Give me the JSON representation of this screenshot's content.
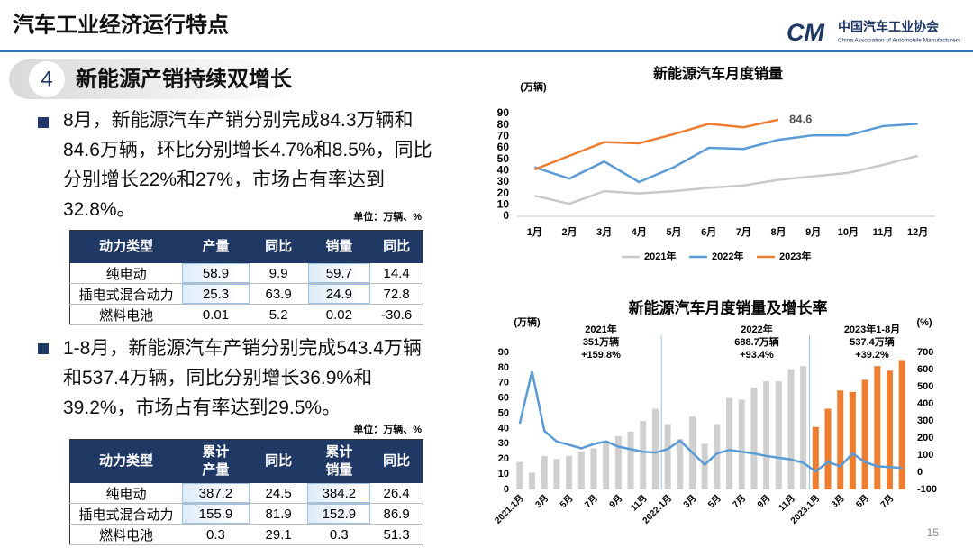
{
  "header": {
    "title": "汽车工业经济运行特点",
    "logo_cn": "中国汽车工业协会",
    "logo_en": "China Association of Automobile Manufacturers"
  },
  "section": {
    "number": "4",
    "title": "新能源产销持续双增长"
  },
  "blocks": [
    {
      "text": "8月，新能源汽车产销分别完成84.3万辆和84.6万辆，环比分别增长4.7%和8.5%，同比分别增长22%和27%，市场占有率达到32.8%。",
      "unit": "单位：万辆、%",
      "table": {
        "header": [
          "动力类型",
          "产量",
          "同比",
          "销量",
          "同比"
        ],
        "rows": [
          [
            "纯电动",
            "58.9",
            "9.9",
            "59.7",
            "14.4"
          ],
          [
            "插电式混合动力",
            "25.3",
            "63.9",
            "24.9",
            "72.8"
          ],
          [
            "燃料电池",
            "0.01",
            "5.2",
            "0.02",
            "-30.6"
          ]
        ]
      }
    },
    {
      "text": "1-8月，新能源汽车产销分别完成543.4万辆和537.4万辆，同比分别增长36.9%和39.2%，市场占有率达到29.5%。",
      "unit": "单位：万辆、%",
      "table": {
        "header": [
          "动力类型",
          "累计\n产量",
          "同比",
          "累计\n销量",
          "同比"
        ],
        "rows": [
          [
            "纯电动",
            "387.2",
            "24.5",
            "384.2",
            "26.4"
          ],
          [
            "插电式混合动力",
            "155.9",
            "81.9",
            "152.9",
            "86.9"
          ],
          [
            "燃料电池",
            "0.3",
            "29.1",
            "0.3",
            "51.3"
          ]
        ]
      }
    }
  ],
  "chart_data": [
    {
      "type": "line",
      "title": "新能源汽车月度销量",
      "y_label": "(万辆)",
      "categories": [
        "1月",
        "2月",
        "3月",
        "4月",
        "5月",
        "6月",
        "7月",
        "8月",
        "9月",
        "10月",
        "11月",
        "12月"
      ],
      "series": [
        {
          "name": "2021年",
          "color": "#c9c9c9",
          "values": [
            18,
            11,
            22,
            20,
            22,
            25,
            27,
            32,
            35,
            38,
            45,
            53
          ]
        },
        {
          "name": "2022年",
          "color": "#5b9bd5",
          "values": [
            43,
            33,
            48,
            30,
            43,
            60,
            59,
            67,
            71,
            71,
            79,
            81
          ]
        },
        {
          "name": "2023年",
          "color": "#ed7d31",
          "values": [
            41,
            53,
            65,
            64,
            72,
            81,
            78,
            84.6,
            null,
            null,
            null,
            null
          ]
        }
      ],
      "ylim": [
        0,
        90
      ],
      "yticks": [
        0,
        10,
        20,
        30,
        40,
        50,
        60,
        70,
        80,
        90
      ],
      "grid": false,
      "legend": "bottom"
    },
    {
      "type": "bar_line",
      "title": "新能源汽车月度销量及增长率",
      "y_label": "(万辆)",
      "y2_label": "(%)",
      "categories": [
        "2021.1月",
        null,
        "3月",
        null,
        "5月",
        null,
        "7月",
        null,
        "9月",
        null,
        "11月",
        null,
        "2022.1月",
        null,
        "3月",
        null,
        "5月",
        null,
        "7月",
        null,
        "9月",
        null,
        "11月",
        null,
        "2023.1月",
        null,
        "3月",
        null,
        "5月",
        null,
        "7月",
        null
      ],
      "series": [
        {
          "type": "bar",
          "values": [
            18,
            11,
            22,
            20,
            22,
            25,
            27,
            32,
            35,
            38,
            45,
            53,
            43,
            33,
            48,
            30,
            43,
            60,
            59,
            67,
            71,
            71,
            79,
            81,
            41,
            53,
            65,
            64,
            72,
            81,
            78,
            85
          ],
          "colors": [
            "#d0d0d0",
            "#d0d0d0",
            "#d0d0d0",
            "#d0d0d0",
            "#d0d0d0",
            "#d0d0d0",
            "#d0d0d0",
            "#d0d0d0",
            "#d0d0d0",
            "#d0d0d0",
            "#d0d0d0",
            "#d0d0d0",
            "#d0d0d0",
            "#d0d0d0",
            "#d0d0d0",
            "#d0d0d0",
            "#d0d0d0",
            "#d0d0d0",
            "#d0d0d0",
            "#d0d0d0",
            "#d0d0d0",
            "#d0d0d0",
            "#d0d0d0",
            "#d0d0d0",
            "#ed7d31",
            "#ed7d31",
            "#ed7d31",
            "#ed7d31",
            "#ed7d31",
            "#ed7d31",
            "#ed7d31",
            "#ed7d31"
          ]
        },
        {
          "type": "line",
          "axis": "y2",
          "color": "#5b9bd5",
          "values": [
            284,
            589,
            242,
            180,
            160,
            140,
            165,
            180,
            150,
            135,
            120,
            115,
            135,
            185,
            115,
            45,
            110,
            130,
            120,
            110,
            95,
            85,
            75,
            55,
            5,
            60,
            35,
            110,
            60,
            35,
            30,
            25
          ]
        }
      ],
      "ylim": [
        0,
        90
      ],
      "yticks": [
        0,
        10,
        20,
        30,
        40,
        50,
        60,
        70,
        80,
        90
      ],
      "y2lim": [
        -100,
        700
      ],
      "y2ticks": [
        -100,
        0,
        100,
        200,
        300,
        400,
        500,
        600,
        700
      ],
      "annotations": [
        [
          "2021年",
          "351万辆",
          "+159.8%"
        ],
        [
          "2022年",
          "688.7万辆",
          "+93.4%"
        ],
        [
          "2023年1-8月",
          "537.4万辆",
          "+39.2%"
        ]
      ]
    }
  ],
  "page_number": "15"
}
